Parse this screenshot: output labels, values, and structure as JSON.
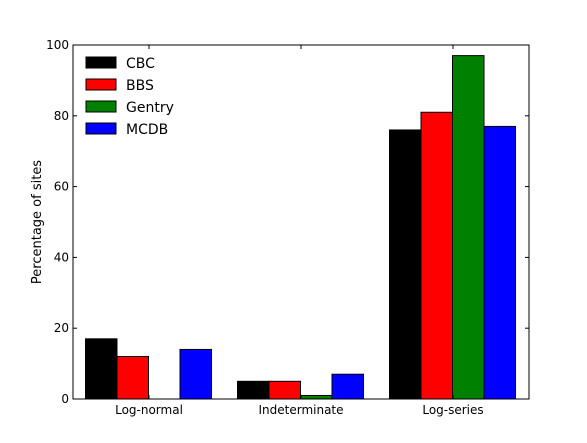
{
  "chart_data": {
    "type": "bar",
    "categories": [
      "Log-normal",
      "Indeterminate",
      "Log-series"
    ],
    "series": [
      {
        "name": "CBC",
        "color": "#000000",
        "values": [
          17,
          5,
          76
        ]
      },
      {
        "name": "BBS",
        "color": "#ff0000",
        "values": [
          12,
          5,
          81
        ]
      },
      {
        "name": "Gentry",
        "color": "#008000",
        "values": [
          0,
          1,
          97
        ]
      },
      {
        "name": "MCDB",
        "color": "#0000ff",
        "values": [
          14,
          7,
          77
        ]
      }
    ],
    "title": "",
    "xlabel": "",
    "ylabel": "Percentage of sites",
    "ylim": [
      0,
      100
    ],
    "yticks": [
      0,
      20,
      40,
      60,
      80,
      100
    ],
    "grid": false,
    "legend": "top-left"
  }
}
